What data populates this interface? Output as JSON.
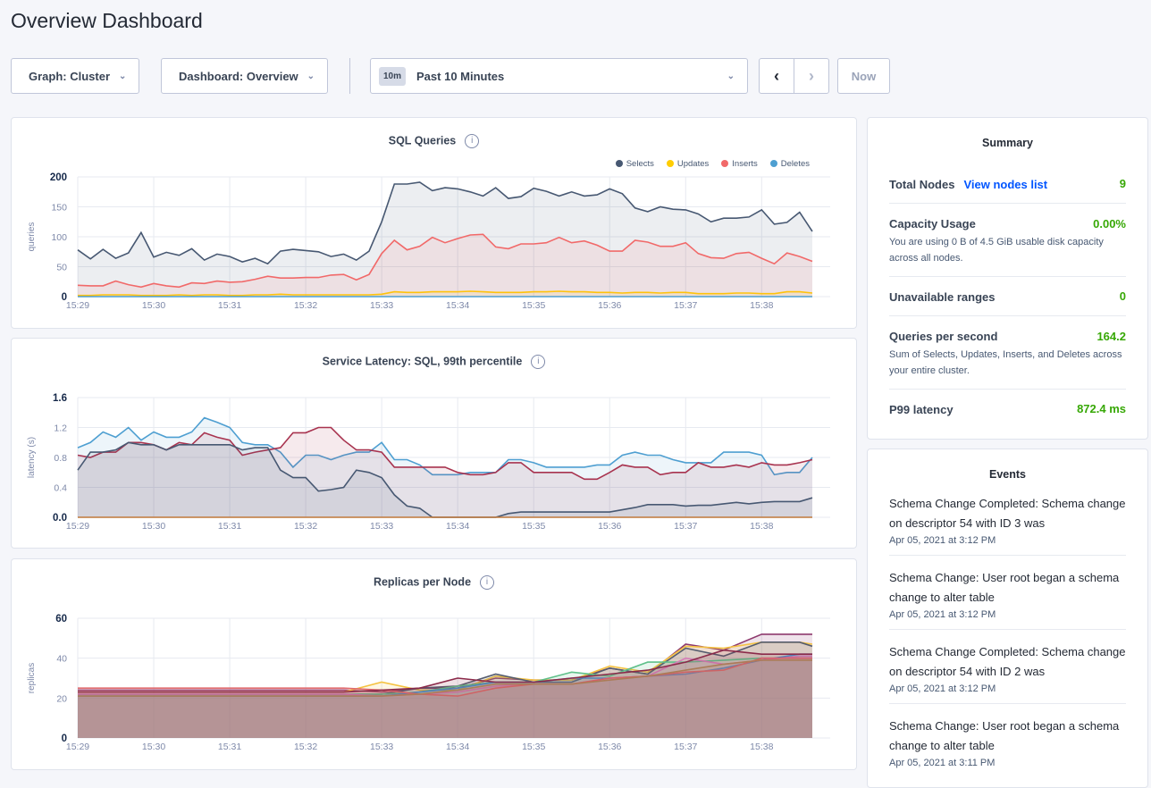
{
  "page": {
    "title": "Overview Dashboard"
  },
  "toolbar": {
    "graph": "Graph: Cluster",
    "dashboard": "Dashboard: Overview",
    "time_badge": "10m",
    "time_range": "Past 10 Minutes",
    "now": "Now"
  },
  "icons": {
    "chevron": "chevron-down-icon",
    "prev": "chevron-left-icon",
    "next": "chevron-right-icon",
    "info": "info-icon"
  },
  "summary": {
    "title": "Summary",
    "total_nodes": {
      "label": "Total Nodes",
      "link": "View nodes list",
      "value": "9"
    },
    "capacity": {
      "label": "Capacity Usage",
      "value": "0.00%",
      "desc": "You are using 0 B of 4.5 GiB usable disk capacity across all nodes."
    },
    "unavailable": {
      "label": "Unavailable ranges",
      "value": "0"
    },
    "qps": {
      "label": "Queries per second",
      "value": "164.2",
      "desc": "Sum of Selects, Updates, Inserts, and Deletes across your entire cluster."
    },
    "p99": {
      "label": "P99 latency",
      "value": "872.4 ms"
    }
  },
  "events": {
    "title": "Events",
    "items": [
      {
        "text": "Schema Change Completed: Schema change on descriptor 54 with ID 3 was",
        "date": "Apr 05, 2021 at 3:12 PM"
      },
      {
        "text": "Schema Change: User root began a schema change to alter table",
        "date": "Apr 05, 2021 at 3:12 PM"
      },
      {
        "text": "Schema Change Completed: Schema change on descriptor 54 with ID 2 was",
        "date": "Apr 05, 2021 at 3:12 PM"
      },
      {
        "text": "Schema Change: User root began a schema change to alter table",
        "date": "Apr 05, 2021 at 3:11 PM"
      }
    ]
  },
  "chart_data": [
    {
      "type": "area",
      "title": "SQL Queries",
      "ylabel": "queries",
      "ylim": [
        0,
        200
      ],
      "yticks": [
        "0",
        "50",
        "100",
        "150",
        "200"
      ],
      "xticks": [
        "15:29",
        "15:30",
        "15:31",
        "15:32",
        "15:33",
        "15:34",
        "15:35",
        "15:36",
        "15:37",
        "15:38"
      ],
      "x_start": "15:29:00",
      "x_step_seconds": 10,
      "grid": true,
      "legend": "top-right",
      "series": [
        {
          "name": "Selects",
          "color": "#475872",
          "values": [
            78,
            63,
            79,
            64,
            73,
            107,
            66,
            74,
            69,
            80,
            61,
            71,
            67,
            58,
            64,
            55,
            76,
            79,
            77,
            75,
            67,
            71,
            61,
            76,
            125,
            188,
            188,
            191,
            177,
            182,
            180,
            175,
            168,
            182,
            164,
            167,
            181,
            176,
            168,
            175,
            168,
            170,
            180,
            172,
            148,
            142,
            150,
            146,
            145,
            138,
            125,
            131,
            131,
            133,
            145,
            121,
            124,
            141,
            109
          ]
        },
        {
          "name": "Updates",
          "color": "#ffcd02",
          "values": [
            2,
            2,
            3,
            3,
            3,
            2,
            2,
            2,
            3,
            2,
            3,
            3,
            2,
            2,
            3,
            3,
            4,
            3,
            3,
            3,
            3,
            3,
            3,
            3,
            4,
            8,
            7,
            7,
            8,
            8,
            8,
            9,
            8,
            7,
            7,
            7,
            8,
            8,
            9,
            8,
            8,
            7,
            7,
            6,
            7,
            7,
            6,
            7,
            7,
            5,
            5,
            5,
            6,
            6,
            5,
            5,
            8,
            8,
            6
          ]
        },
        {
          "name": "Inserts",
          "color": "#f16969",
          "values": [
            19,
            18,
            18,
            26,
            20,
            16,
            22,
            18,
            16,
            23,
            22,
            26,
            24,
            25,
            29,
            34,
            31,
            31,
            32,
            32,
            36,
            37,
            28,
            37,
            72,
            94,
            78,
            84,
            99,
            90,
            97,
            103,
            104,
            83,
            80,
            88,
            88,
            90,
            99,
            90,
            93,
            86,
            76,
            76,
            94,
            91,
            84,
            84,
            90,
            72,
            65,
            64,
            72,
            74,
            64,
            55,
            73,
            67,
            59
          ]
        },
        {
          "name": "Deletes",
          "color": "#4e9fd1",
          "values": [
            0,
            0,
            0,
            0,
            0,
            0,
            0,
            0,
            0,
            0,
            0,
            0,
            0,
            0,
            0,
            0,
            0,
            0,
            0,
            0,
            0,
            0,
            0,
            0,
            0,
            0,
            0,
            0,
            0,
            0,
            0,
            0,
            0,
            0,
            0,
            0,
            0,
            0,
            0,
            0,
            0,
            0,
            0,
            0,
            0,
            0,
            0,
            0,
            0,
            0,
            0,
            0,
            0,
            0,
            0,
            0,
            0,
            0,
            0
          ]
        }
      ]
    },
    {
      "type": "area",
      "title": "Service Latency: SQL, 99th percentile",
      "ylabel": "latency (s)",
      "ylim": [
        0,
        1.6
      ],
      "yticks": [
        "0.0",
        "0.4",
        "0.8",
        "1.2",
        "1.6"
      ],
      "xticks": [
        "15:29",
        "15:30",
        "15:31",
        "15:32",
        "15:33",
        "15:34",
        "15:35",
        "15:36",
        "15:37",
        "15:38"
      ],
      "x_start": "15:29:00",
      "x_step_seconds": 10,
      "grid": true,
      "series": [
        {
          "color": "#4e9fd1",
          "values": [
            0.93,
            1.0,
            1.14,
            1.07,
            1.2,
            1.03,
            1.14,
            1.07,
            1.07,
            1.14,
            1.33,
            1.27,
            1.2,
            1.0,
            0.97,
            0.97,
            0.87,
            0.67,
            0.83,
            0.83,
            0.77,
            0.83,
            0.87,
            0.87,
            1.0,
            0.77,
            0.77,
            0.7,
            0.57,
            0.57,
            0.57,
            0.6,
            0.6,
            0.6,
            0.77,
            0.77,
            0.73,
            0.67,
            0.67,
            0.67,
            0.67,
            0.7,
            0.7,
            0.83,
            0.87,
            0.83,
            0.83,
            0.77,
            0.73,
            0.73,
            0.73,
            0.87,
            0.87,
            0.87,
            0.83,
            0.57,
            0.6,
            0.6,
            0.8
          ]
        },
        {
          "color": "#a8334f",
          "values": [
            0.83,
            0.8,
            0.87,
            0.87,
            1.0,
            1.0,
            0.97,
            0.9,
            1.0,
            0.97,
            1.13,
            1.07,
            1.03,
            0.83,
            0.87,
            0.9,
            0.93,
            1.13,
            1.13,
            1.2,
            1.2,
            1.03,
            0.9,
            0.9,
            0.87,
            0.67,
            0.67,
            0.67,
            0.67,
            0.67,
            0.6,
            0.57,
            0.57,
            0.6,
            0.73,
            0.73,
            0.6,
            0.6,
            0.6,
            0.6,
            0.51,
            0.51,
            0.6,
            0.7,
            0.67,
            0.67,
            0.57,
            0.6,
            0.6,
            0.73,
            0.67,
            0.67,
            0.7,
            0.67,
            0.73,
            0.7,
            0.7,
            0.73,
            0.77
          ]
        },
        {
          "color": "#475872",
          "values": [
            0.63,
            0.87,
            0.87,
            0.9,
            1.0,
            0.97,
            0.97,
            0.9,
            0.97,
            0.97,
            0.97,
            0.97,
            0.97,
            0.9,
            0.93,
            0.93,
            0.63,
            0.53,
            0.53,
            0.35,
            0.37,
            0.4,
            0.63,
            0.6,
            0.53,
            0.3,
            0.15,
            0.12,
            0,
            0,
            0,
            0,
            0,
            0,
            0.05,
            0.07,
            0.07,
            0.07,
            0.07,
            0.07,
            0.07,
            0.07,
            0.07,
            0.1,
            0.13,
            0.17,
            0.17,
            0.17,
            0.15,
            0.16,
            0.16,
            0.18,
            0.2,
            0.18,
            0.2,
            0.21,
            0.21,
            0.21,
            0.26
          ]
        },
        {
          "color": "#c0783a",
          "values": [
            0,
            0,
            0,
            0,
            0,
            0,
            0,
            0,
            0,
            0,
            0,
            0,
            0,
            0,
            0,
            0,
            0,
            0,
            0,
            0,
            0,
            0,
            0,
            0,
            0,
            0,
            0,
            0,
            0,
            0,
            0,
            0,
            0,
            0,
            0,
            0,
            0,
            0,
            0,
            0,
            0,
            0,
            0,
            0,
            0,
            0,
            0,
            0,
            0,
            0,
            0,
            0,
            0,
            0,
            0,
            0,
            0,
            0,
            0
          ]
        }
      ]
    },
    {
      "type": "area",
      "title": "Replicas per Node",
      "ylabel": "replicas",
      "ylim": [
        0,
        60
      ],
      "yticks": [
        "0",
        "20",
        "40",
        "60"
      ],
      "xticks": [
        "15:29",
        "15:30",
        "15:31",
        "15:32",
        "15:33",
        "15:34",
        "15:35",
        "15:36",
        "15:37",
        "15:38"
      ],
      "x": [
        "15:29:00",
        "15:29:30",
        "15:30:00",
        "15:30:30",
        "15:31:00",
        "15:31:30",
        "15:32:00",
        "15:32:30",
        "15:33:00",
        "15:33:30",
        "15:34:00",
        "15:34:30",
        "15:35:00",
        "15:35:30",
        "15:36:00",
        "15:36:30",
        "15:37:00",
        "15:37:30",
        "15:38:00",
        "15:38:30",
        "15:38:40"
      ],
      "grid": true,
      "series": [
        {
          "color": "#8e3a6e",
          "values": [
            24,
            24,
            24,
            24,
            24,
            24,
            24,
            24,
            23,
            25,
            25,
            30,
            29,
            29,
            35,
            32,
            47,
            44,
            52,
            52,
            52
          ]
        },
        {
          "color": "#f5c342",
          "values": [
            23,
            23,
            23,
            23,
            23,
            23,
            23,
            23,
            28,
            24,
            24,
            31,
            29,
            29,
            36,
            33,
            46,
            45,
            48,
            48,
            47
          ]
        },
        {
          "color": "#555c6e",
          "values": [
            22,
            22,
            22,
            22,
            22,
            22,
            22,
            22,
            22,
            25,
            26,
            32,
            28,
            28,
            35,
            32,
            45,
            41,
            48,
            48,
            46
          ]
        },
        {
          "color": "#5fc08a",
          "values": [
            22,
            22,
            22,
            22,
            22,
            22,
            22,
            22,
            22,
            23,
            26,
            28,
            28,
            33,
            31,
            38,
            38,
            39,
            40,
            40,
            40
          ]
        },
        {
          "color": "#4a90c8",
          "values": [
            21,
            21,
            21,
            21,
            21,
            21,
            21,
            21,
            21,
            23,
            25,
            28,
            28,
            30,
            30,
            31,
            32,
            35,
            39,
            42,
            42
          ]
        },
        {
          "color": "#d67db8",
          "values": [
            22,
            22,
            22,
            22,
            22,
            22,
            22,
            22,
            21,
            22,
            23,
            26,
            27,
            27,
            30,
            31,
            40,
            37,
            39,
            41,
            41
          ]
        },
        {
          "color": "#e06a6e",
          "values": [
            25,
            25,
            25,
            25,
            25,
            25,
            25,
            25,
            24,
            22,
            21,
            25,
            27,
            27,
            30,
            31,
            33,
            34,
            40,
            40,
            40
          ]
        },
        {
          "color": "#b08a5a",
          "values": [
            21,
            21,
            21,
            21,
            21,
            21,
            21,
            21,
            21,
            22,
            24,
            27,
            27,
            27,
            29,
            31,
            34,
            37,
            39,
            39,
            39
          ]
        },
        {
          "color": "#8b2a4a",
          "values": [
            23,
            23,
            23,
            23,
            23,
            23,
            23,
            23,
            24,
            25,
            30,
            28,
            28,
            30,
            32,
            34,
            38,
            44,
            42,
            42,
            42
          ]
        }
      ]
    }
  ]
}
